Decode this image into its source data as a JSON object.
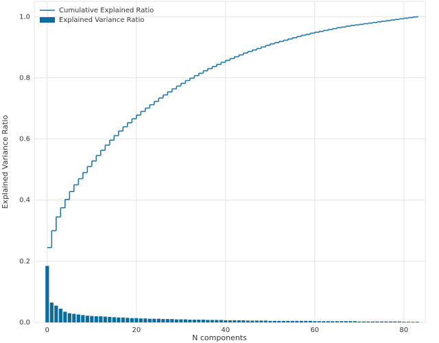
{
  "chart_data": {
    "type": "pca-variance",
    "xlabel": "N components",
    "ylabel": "Explained Variance Ratio",
    "x": [
      0,
      1,
      2,
      3,
      4,
      5,
      6,
      7,
      8,
      9,
      10,
      11,
      12,
      13,
      14,
      15,
      16,
      17,
      18,
      19,
      20,
      21,
      22,
      23,
      24,
      25,
      26,
      27,
      28,
      29,
      30,
      31,
      32,
      33,
      34,
      35,
      36,
      37,
      38,
      39,
      40,
      41,
      42,
      43,
      44,
      45,
      46,
      47,
      48,
      49,
      50,
      51,
      52,
      53,
      54,
      55,
      56,
      57,
      58,
      59,
      60,
      61,
      62,
      63,
      64,
      65,
      66,
      67,
      68,
      69,
      70,
      71,
      72,
      73,
      74,
      75,
      76,
      77,
      78,
      79,
      80,
      81,
      82,
      83
    ],
    "series": [
      {
        "name": "Cumulative Explained Ratio",
        "kind": "step",
        "color": "#1f78ab",
        "values": [
          0.245,
          0.3,
          0.345,
          0.375,
          0.402,
          0.428,
          0.45,
          0.47,
          0.49,
          0.51,
          0.528,
          0.546,
          0.563,
          0.58,
          0.596,
          0.611,
          0.626,
          0.64,
          0.653,
          0.666,
          0.678,
          0.69,
          0.701,
          0.712,
          0.723,
          0.734,
          0.744,
          0.754,
          0.764,
          0.773,
          0.782,
          0.791,
          0.799,
          0.807,
          0.815,
          0.823,
          0.83,
          0.837,
          0.844,
          0.851,
          0.857,
          0.863,
          0.869,
          0.875,
          0.881,
          0.886,
          0.891,
          0.896,
          0.901,
          0.906,
          0.911,
          0.915,
          0.919,
          0.923,
          0.927,
          0.931,
          0.935,
          0.939,
          0.942,
          0.946,
          0.949,
          0.952,
          0.955,
          0.958,
          0.961,
          0.964,
          0.966,
          0.969,
          0.971,
          0.973,
          0.975,
          0.977,
          0.979,
          0.981,
          0.983,
          0.985,
          0.987,
          0.989,
          0.991,
          0.993,
          0.995,
          0.997,
          0.999,
          1.0
        ]
      },
      {
        "name": "Explained Variance Ratio",
        "kind": "bar",
        "color": "#0a6d9e",
        "values": [
          0.185,
          0.065,
          0.055,
          0.045,
          0.035,
          0.03,
          0.028,
          0.026,
          0.024,
          0.022,
          0.021,
          0.02,
          0.02,
          0.019,
          0.018,
          0.017,
          0.016,
          0.016,
          0.015,
          0.014,
          0.014,
          0.013,
          0.013,
          0.012,
          0.012,
          0.012,
          0.011,
          0.011,
          0.011,
          0.01,
          0.01,
          0.01,
          0.009,
          0.009,
          0.009,
          0.009,
          0.008,
          0.008,
          0.008,
          0.008,
          0.007,
          0.007,
          0.007,
          0.007,
          0.007,
          0.006,
          0.006,
          0.006,
          0.006,
          0.006,
          0.005,
          0.005,
          0.005,
          0.005,
          0.005,
          0.005,
          0.005,
          0.005,
          0.005,
          0.005,
          0.004,
          0.004,
          0.004,
          0.004,
          0.004,
          0.004,
          0.004,
          0.004,
          0.004,
          0.004,
          0.003,
          0.003,
          0.003,
          0.003,
          0.003,
          0.003,
          0.003,
          0.003,
          0.003,
          0.003,
          0.002,
          0.002,
          0.002,
          0.002
        ]
      }
    ],
    "xlim": [
      -2.9,
      84.8
    ],
    "ylim": [
      0,
      1.05
    ],
    "xticks": [
      0,
      20,
      40,
      60,
      80
    ],
    "yticks": [
      {
        "value": 0,
        "label": "0.0"
      },
      0.2,
      0.4,
      0.6,
      0.8,
      {
        "value": 1,
        "label": "1.0"
      }
    ],
    "grid": true,
    "legend": "upper-left"
  }
}
